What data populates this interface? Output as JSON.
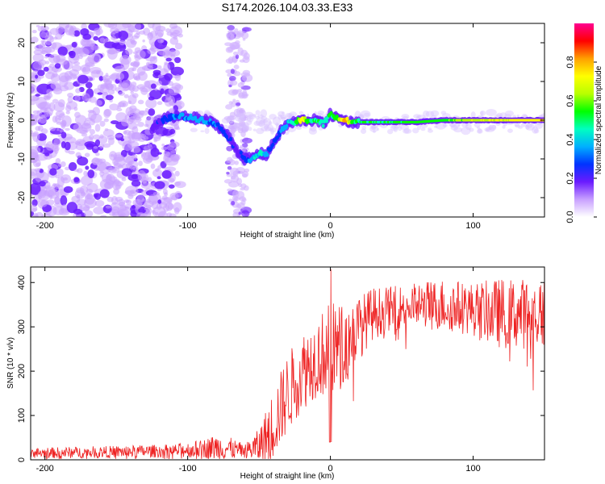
{
  "title": "S174.2026.104.03.33.E33",
  "chart_data": [
    {
      "type": "heatmap",
      "name": "spectrogram",
      "xlabel": "Height of straight line (km)",
      "ylabel": "Frequency (Hz)",
      "xlim": [
        -210,
        150
      ],
      "ylim": [
        -25,
        25
      ],
      "xticks": [
        -200,
        -100,
        0,
        100
      ],
      "xtick_labels": [
        "-200",
        "-100",
        "0",
        "100"
      ],
      "yticks": [
        -20,
        -10,
        0,
        10,
        20
      ],
      "ytick_labels": [
        "-20",
        "-10",
        "0",
        "10",
        "20"
      ],
      "colorbar": {
        "label": "Normalized spectral amplitude",
        "range": [
          0,
          1
        ],
        "ticks": [
          0.0,
          0.2,
          0.4,
          0.6,
          0.8
        ],
        "tick_labels": [
          "0.0",
          "0.2",
          "0.4",
          "0.6",
          "0.8"
        ],
        "colors": [
          "#ffffff",
          "#c8a0ff",
          "#6a1bff",
          "#0033ff",
          "#00b0ff",
          "#00ffc0",
          "#00ff00",
          "#b8ff00",
          "#ffff00",
          "#ffa000",
          "#ff0000",
          "#ff0090"
        ]
      },
      "ridge": {
        "x": [
          -125,
          -115,
          -105,
          -95,
          -88,
          -80,
          -72,
          -65,
          -60,
          -55,
          -50,
          -45,
          -40,
          -35,
          -30,
          -25,
          -20,
          -15,
          -10,
          -5,
          0,
          5,
          10,
          15,
          20,
          40,
          60,
          80,
          100,
          120,
          150
        ],
        "freq": [
          -2,
          0.5,
          1,
          0.5,
          0,
          -1,
          -4,
          -8,
          -10,
          -10,
          -8.5,
          -9,
          -6,
          -3,
          -1,
          -0.5,
          0,
          0,
          0,
          -1,
          1.5,
          0.5,
          0,
          -0.5,
          -0.5,
          -0.5,
          -0.5,
          0,
          0,
          0,
          0
        ],
        "amp": [
          0.15,
          0.3,
          0.35,
          0.35,
          0.35,
          0.3,
          0.25,
          0.2,
          0.25,
          0.4,
          0.45,
          0.35,
          0.25,
          0.3,
          0.4,
          0.45,
          0.75,
          0.5,
          0.5,
          0.45,
          0.5,
          0.55,
          0.85,
          0.55,
          0.5,
          0.5,
          0.55,
          0.55,
          0.65,
          0.7,
          0.75
        ]
      }
    },
    {
      "type": "line",
      "name": "snr",
      "xlabel": "Height of straight line (km)",
      "ylabel": "SNR (10 * v/v)",
      "xlim": [
        -210,
        150
      ],
      "ylim": [
        0,
        435
      ],
      "xticks": [
        -200,
        -100,
        0,
        100
      ],
      "xtick_labels": [
        "-200",
        "-100",
        "0",
        "100"
      ],
      "yticks": [
        0,
        100,
        200,
        300,
        400
      ],
      "ytick_labels": [
        "0",
        "100",
        "200",
        "300",
        "400"
      ],
      "color": "#ee2222",
      "envelope": {
        "x": [
          -210,
          -110,
          -90,
          -80,
          -70,
          -60,
          -50,
          -40,
          -30,
          -20,
          -10,
          -5,
          0,
          10,
          20,
          30,
          40,
          60,
          80,
          100,
          120,
          150
        ],
        "base": [
          15,
          20,
          25,
          28,
          25,
          20,
          30,
          80,
          150,
          200,
          230,
          240,
          250,
          260,
          300,
          330,
          340,
          350,
          350,
          340,
          330,
          330
        ],
        "spread": [
          12,
          15,
          20,
          30,
          25,
          15,
          40,
          80,
          90,
          90,
          90,
          100,
          110,
          90,
          70,
          60,
          50,
          50,
          60,
          60,
          80,
          80
        ]
      }
    }
  ]
}
